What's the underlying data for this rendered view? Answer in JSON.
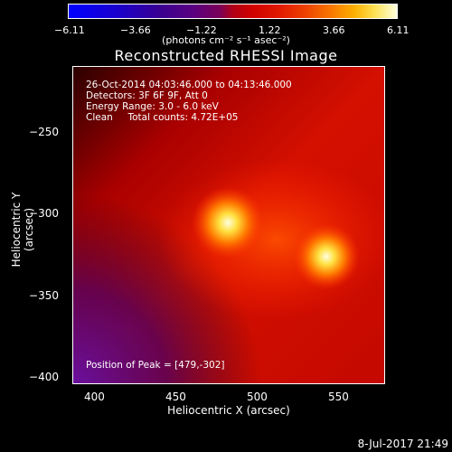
{
  "colorbar": {
    "ticks": [
      "−6.11",
      "−3.66",
      "−1.22",
      "1.22",
      "3.66",
      "6.11"
    ],
    "label": "(photons cm⁻² s⁻¹ asec⁻²)"
  },
  "chart_data": {
    "type": "heatmap",
    "title": "Reconstructed RHESSI Image",
    "xlabel": "Heliocentric X (arcsec)",
    "ylabel": "Heliocentric Y (arcsec)",
    "x_ticks": [
      "400",
      "450",
      "500",
      "550"
    ],
    "y_ticks": [
      "−250",
      "−300",
      "−350",
      "−400"
    ],
    "xlim": [
      383,
      577
    ],
    "ylim": [
      -403,
      -205
    ],
    "color_range": [
      -6.11,
      6.11
    ],
    "sources": [
      {
        "x": 479,
        "y": -302,
        "intensity": 6.11
      },
      {
        "x": 540,
        "y": -323,
        "intensity": 5.2
      }
    ],
    "annotations": [
      "26-Oct-2014 04:03:46.000 to 04:13:46.000",
      "Detectors: 3F 6F 9F, Att 0",
      "Energy Range: 3.0 - 6.0 keV",
      "Clean     Total counts: 4.72E+05"
    ],
    "peak_label": "Position of Peak = [479,-302]"
  },
  "timestamp": "8-Jul-2017 21:49"
}
